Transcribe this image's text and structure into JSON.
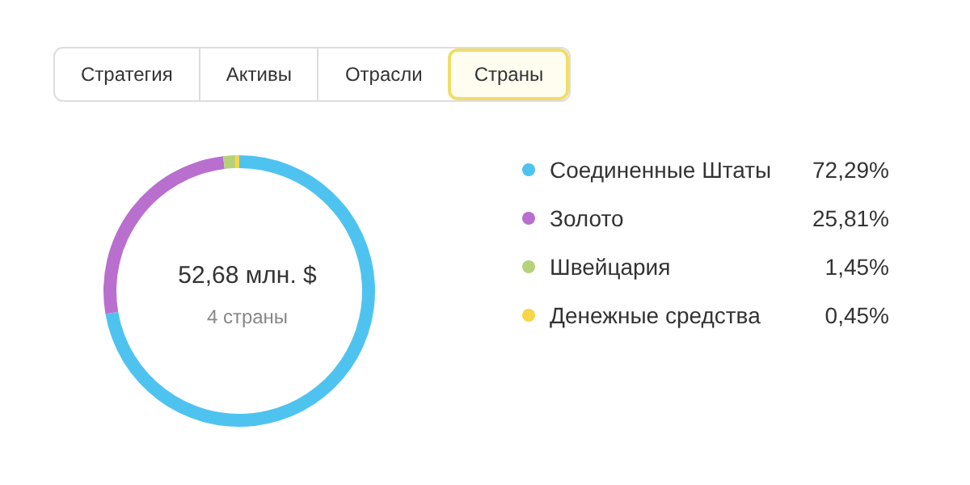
{
  "chart_data": {
    "type": "donut",
    "title": "52,68 млн. $",
    "subtitle": "4 страны",
    "annotations": [
      "Стратегия",
      "Активы",
      "Отрасли",
      "Страны"
    ],
    "categories": [
      "Соединенные Штаты",
      "Золото",
      "Швейцария",
      "Денежные средства"
    ],
    "values": [
      72.29,
      25.81,
      1.45,
      0.45
    ],
    "value_labels": [
      "72,29%",
      "25,81%",
      "1,45%",
      "0,45%"
    ],
    "colors": [
      "#4fc3f0",
      "#b86fce",
      "#b5d27a",
      "#f6d547"
    ],
    "legend": "right"
  }
}
